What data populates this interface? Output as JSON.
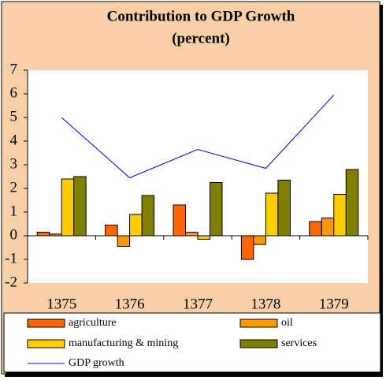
{
  "chart_data": {
    "type": "bar",
    "title": "Contribution to GDP Growth",
    "subtitle": "(percent)",
    "categories": [
      "1375",
      "1376",
      "1377",
      "1378",
      "1379"
    ],
    "series": [
      {
        "name": "agriculture",
        "color": "#ff6600",
        "values": [
          0.15,
          0.45,
          1.3,
          -1.0,
          0.6
        ]
      },
      {
        "name": "oil",
        "color": "#ff9900",
        "values": [
          0.07,
          -0.45,
          0.15,
          -0.37,
          0.75
        ]
      },
      {
        "name": "manufacturing & mining",
        "color": "#ffcc00",
        "values": [
          2.4,
          0.9,
          -0.15,
          1.8,
          1.75
        ]
      },
      {
        "name": "services",
        "color": "#808000",
        "values": [
          2.5,
          1.7,
          2.25,
          2.35,
          2.8
        ]
      },
      {
        "name": "GDP growth",
        "type": "line",
        "color": "#0000ff",
        "values": [
          5.0,
          2.45,
          3.65,
          2.85,
          5.95
        ]
      }
    ],
    "ylim": [
      -2,
      7
    ],
    "yticks": [
      -2,
      -1,
      0,
      1,
      2,
      3,
      4,
      5,
      6,
      7
    ],
    "grid": false
  }
}
